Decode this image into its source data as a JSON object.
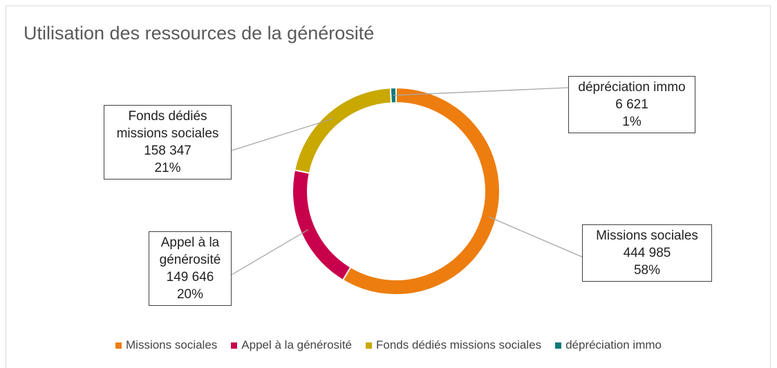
{
  "chart_data": {
    "type": "donut",
    "title": "Utilisation des ressources de la générosité",
    "categories": [
      "Missions sociales",
      "Appel à la générosité",
      "Fonds dédiés missions sociales",
      "dépréciation immo"
    ],
    "values": [
      444985,
      149646,
      158347,
      6621
    ],
    "value_labels": [
      "444 985",
      "149 646",
      "158 347",
      "6 621"
    ],
    "percentages": [
      58,
      20,
      21,
      1
    ],
    "percentage_labels": [
      "58%",
      "20%",
      "21%",
      "1%"
    ],
    "colors": [
      "#ed7d0f",
      "#c8004b",
      "#c9a800",
      "#0b7a7a"
    ],
    "legend": "bottom"
  }
}
